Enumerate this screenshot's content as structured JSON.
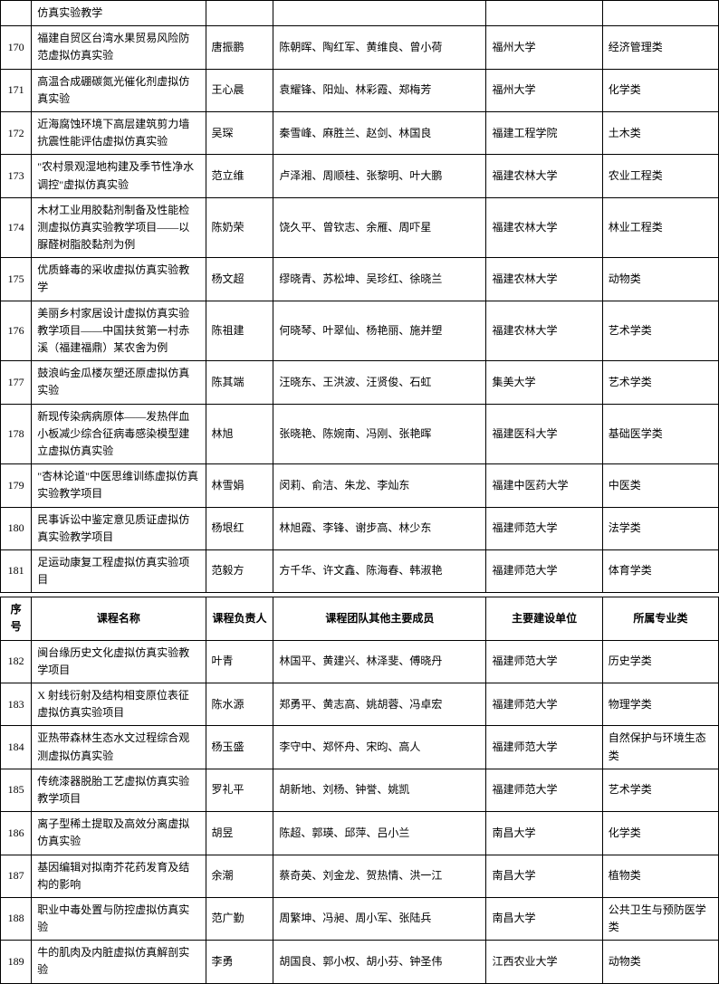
{
  "header": {
    "num": "序号",
    "name": "课程名称",
    "leader": "课程负责人",
    "team": "课程团队其他主要成员",
    "unit": "主要建设单位",
    "cat": "所属专业类"
  },
  "top": {
    "first_partial": "仿真实验教学",
    "rows": [
      {
        "num": "170",
        "name": "福建自贸区台湾水果贸易风险防范虚拟仿真实验",
        "leader": "唐振鹏",
        "team": "陈朝晖、陶红军、黄维良、曾小荷",
        "unit": "福州大学",
        "cat": "经济管理类"
      },
      {
        "num": "171",
        "name": "高温合成硼碳氮光催化剂虚拟仿真实验",
        "leader": "王心晨",
        "team": "袁耀锋、阳灿、林彩霞、郑梅芳",
        "unit": "福州大学",
        "cat": "化学类"
      },
      {
        "num": "172",
        "name": "近海腐蚀环境下高层建筑剪力墙抗震性能评估虚拟仿真实验",
        "leader": "吴琛",
        "team": "秦雪峰、麻胜兰、赵剑、林国良",
        "unit": "福建工程学院",
        "cat": "土木类"
      },
      {
        "num": "173",
        "name": "\"农村景观湿地构建及季节性净水调控\"虚拟仿真实验",
        "leader": "范立维",
        "team": "卢泽湘、周顺桂、张黎明、叶大鹏",
        "unit": "福建农林大学",
        "cat": "农业工程类"
      },
      {
        "num": "174",
        "name": "木材工业用胶黏剂制备及性能检测虚拟仿真实验教学项目——以脲醛树脂胶黏剂为例",
        "leader": "陈奶荣",
        "team": "饶久平、曾钦志、余雁、周吓星",
        "unit": "福建农林大学",
        "cat": "林业工程类"
      },
      {
        "num": "175",
        "name": "优质蜂毒的采收虚拟仿真实验教学",
        "leader": "杨文超",
        "team": "缪晓青、苏松坤、吴珍红、徐晓兰",
        "unit": "福建农林大学",
        "cat": "动物类"
      },
      {
        "num": "176",
        "name": "美丽乡村家居设计虚拟仿真实验教学项目——中国扶贫第一村赤溪（福建福鼎）某农舍为例",
        "leader": "陈祖建",
        "team": "何晓琴、叶翠仙、杨艳丽、施并塑",
        "unit": "福建农林大学",
        "cat": "艺术学类"
      },
      {
        "num": "177",
        "name": "鼓浪屿金瓜楼灰塑还原虚拟仿真实验",
        "leader": "陈其端",
        "team": "汪晓东、王洪波、汪贤俊、石虹",
        "unit": "集美大学",
        "cat": "艺术学类"
      },
      {
        "num": "178",
        "name": "新现传染病病原体——发热伴血小板减少综合征病毒感染模型建立虚拟仿真实验",
        "leader": "林旭",
        "team": "张晓艳、陈婉南、冯刚、张艳晖",
        "unit": "福建医科大学",
        "cat": "基础医学类"
      },
      {
        "num": "179",
        "name": "\"杏林论道\"中医思维训练虚拟仿真实验教学项目",
        "leader": "林雪娟",
        "team": "闵莉、俞洁、朱龙、李灿东",
        "unit": "福建中医药大学",
        "cat": "中医类"
      },
      {
        "num": "180",
        "name": "民事诉讼中鉴定意见质证虚拟仿真实验教学项目",
        "leader": "杨垠红",
        "team": "林旭霞、李锋、谢步高、林少东",
        "unit": "福建师范大学",
        "cat": "法学类"
      },
      {
        "num": "181",
        "name": "足运动康复工程虚拟仿真实验项目",
        "leader": "范毅方",
        "team": "方千华、许文鑫、陈海春、韩淑艳",
        "unit": "福建师范大学",
        "cat": "体育学类"
      }
    ]
  },
  "bottom": {
    "rows": [
      {
        "num": "182",
        "name": "闽台缘历史文化虚拟仿真实验教学项目",
        "leader": "叶青",
        "team": "林国平、黄建兴、林泽斐、傅晓丹",
        "unit": "福建师范大学",
        "cat": "历史学类"
      },
      {
        "num": "183",
        "name": "X 射线衍射及结构相变原位表征虚拟仿真实验项目",
        "leader": "陈水源",
        "team": "郑勇平、黄志高、姚胡蓉、冯卓宏",
        "unit": "福建师范大学",
        "cat": "物理学类"
      },
      {
        "num": "184",
        "name": "亚热带森林生态水文过程综合观测虚拟仿真实验",
        "leader": "杨玉盛",
        "team": "李守中、郑怀舟、宋昀、高人",
        "unit": "福建师范大学",
        "cat": "自然保护与环境生态类"
      },
      {
        "num": "185",
        "name": "传统漆器脱胎工艺虚拟仿真实验教学项目",
        "leader": "罗礼平",
        "team": "胡新地、刘杨、钟誉、姚凯",
        "unit": "福建师范大学",
        "cat": "艺术学类"
      },
      {
        "num": "186",
        "name": "离子型稀土提取及高效分离虚拟仿真实验",
        "leader": "胡昱",
        "team": "陈超、郭瑛、邱萍、吕小兰",
        "unit": "南昌大学",
        "cat": "化学类"
      },
      {
        "num": "187",
        "name": "基因编辑对拟南芥花药发育及结构的影响",
        "leader": "余潮",
        "team": "蔡奇英、刘金龙、贺热情、洪一江",
        "unit": "南昌大学",
        "cat": "植物类"
      },
      {
        "num": "188",
        "name": "职业中毒处置与防控虚拟仿真实验",
        "leader": "范广勤",
        "team": "周繁坤、冯昶、周小军、张陆兵",
        "unit": "南昌大学",
        "cat": "公共卫生与预防医学类"
      },
      {
        "num": "189",
        "name": "牛的肌肉及内脏虚拟仿真解剖实验",
        "leader": "李勇",
        "team": "胡国良、郭小权、胡小芬、钟圣伟",
        "unit": "江西农业大学",
        "cat": "动物类"
      }
    ]
  }
}
